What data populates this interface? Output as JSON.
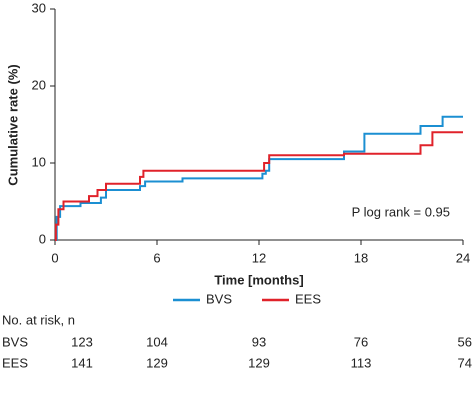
{
  "chart_data": {
    "type": "step",
    "xlabel": "Time [months]",
    "ylabel": "Cumulative rate (%)",
    "xlim": [
      0,
      24
    ],
    "ylim": [
      0,
      30
    ],
    "xticks": [
      0,
      6,
      12,
      18,
      24
    ],
    "yticks": [
      0,
      10,
      20,
      30
    ],
    "annotation": "P log rank = 0.95",
    "series": [
      {
        "name": "BVS",
        "color": "#1b8fd2",
        "x": [
          0,
          0.1,
          0.3,
          1.5,
          2.7,
          3,
          5,
          5.3,
          7.5,
          12.2,
          12.4,
          12.6,
          17,
          18.2,
          21.5,
          22.8,
          24
        ],
        "values": [
          0,
          3,
          4.4,
          4.8,
          5.5,
          6.5,
          7,
          7.6,
          8,
          8.6,
          9,
          10.5,
          11.5,
          13.8,
          14.8,
          16,
          16
        ]
      },
      {
        "name": "EES",
        "color": "#e0222a",
        "x": [
          0,
          0.05,
          0.2,
          0.5,
          2,
          2.5,
          3,
          5,
          5.2,
          12.2,
          12.3,
          12.6,
          17,
          21.5,
          22.2,
          24
        ],
        "values": [
          0,
          2,
          4,
          5,
          5.7,
          6.5,
          7.3,
          8.2,
          9,
          9,
          10,
          11,
          11.2,
          12.3,
          14,
          14
        ]
      }
    ],
    "risk_table": {
      "title": "No. at risk, n",
      "rows": [
        {
          "label": "BVS",
          "values": [
            123,
            104,
            93,
            76,
            56
          ]
        },
        {
          "label": "EES",
          "values": [
            141,
            129,
            129,
            113,
            74
          ]
        }
      ]
    }
  }
}
